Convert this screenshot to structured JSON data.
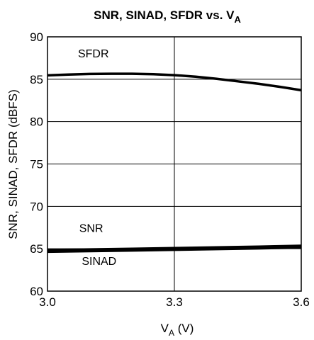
{
  "chart_data": {
    "type": "line",
    "title": "SNR, SINAD, SFDR vs. V",
    "title_subscript": "A",
    "xlabel": "V",
    "xlabel_subscript": "A",
    "xlabel_unit": " (V)",
    "ylabel": "SNR, SINAD, SFDR (dBFS)",
    "xlim": [
      3.0,
      3.6
    ],
    "ylim": [
      60,
      90
    ],
    "xticks": [
      3.0,
      3.3,
      3.6
    ],
    "xtick_labels": [
      "3.0",
      "3.3",
      "3.6"
    ],
    "yticks": [
      60,
      65,
      70,
      75,
      80,
      85,
      90
    ],
    "ytick_labels": [
      "60",
      "65",
      "70",
      "75",
      "80",
      "85",
      "90"
    ],
    "grid": {
      "x_lines": [
        3.3
      ],
      "y_lines": [
        65,
        70,
        75,
        80,
        85
      ]
    },
    "series": [
      {
        "name": "SFDR",
        "x": [
          3.0,
          3.05,
          3.1,
          3.15,
          3.2,
          3.25,
          3.3,
          3.35,
          3.4,
          3.45,
          3.5,
          3.55,
          3.6
        ],
        "y": [
          85.45,
          85.55,
          85.62,
          85.65,
          85.65,
          85.6,
          85.48,
          85.3,
          85.05,
          84.75,
          84.45,
          84.1,
          83.7
        ]
      },
      {
        "name": "SNR",
        "x": [
          3.0,
          3.1,
          3.2,
          3.3,
          3.4,
          3.5,
          3.6
        ],
        "y": [
          64.85,
          64.92,
          65.0,
          65.08,
          65.16,
          65.25,
          65.35
        ]
      },
      {
        "name": "SINAD",
        "x": [
          3.0,
          3.1,
          3.2,
          3.3,
          3.4,
          3.5,
          3.6
        ],
        "y": [
          64.65,
          64.72,
          64.8,
          64.88,
          64.96,
          65.05,
          65.15
        ]
      }
    ],
    "annotations": [
      {
        "text": "SFDR",
        "x": 3.072,
        "y": 88.0
      },
      {
        "text": "SNR",
        "x": 3.075,
        "y": 67.4
      },
      {
        "text": "SINAD",
        "x": 3.081,
        "y": 63.5
      }
    ]
  }
}
